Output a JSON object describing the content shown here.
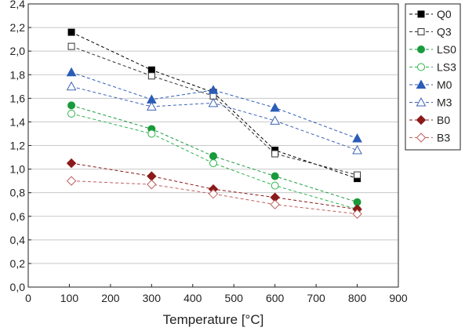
{
  "chart_data": {
    "type": "line",
    "title": "",
    "xlabel": "Temperature [°C]",
    "ylabel": "",
    "xlim": [
      0,
      900
    ],
    "ylim": [
      0.0,
      2.4
    ],
    "xticks": [
      0,
      100,
      200,
      300,
      400,
      500,
      600,
      700,
      800,
      900
    ],
    "xtick_labels": [
      "0",
      "100",
      "200",
      "300",
      "400",
      "500",
      "600",
      "700",
      "800",
      "900"
    ],
    "yticks": [
      0.0,
      0.2,
      0.4,
      0.6,
      0.8,
      1.0,
      1.2,
      1.4,
      1.6,
      1.8,
      2.0,
      2.2,
      2.4
    ],
    "ytick_labels": [
      "0,0",
      "0,2",
      "0,4",
      "0,6",
      "0,8",
      "1,0",
      "1,2",
      "1,4",
      "1,6",
      "1,8",
      "2,0",
      "2,2",
      "2,4"
    ],
    "grid": "horizontal",
    "legend_position": "top-right",
    "x": [
      105,
      300,
      450,
      600,
      800
    ],
    "series": [
      {
        "name": "Q0",
        "values": [
          2.16,
          1.84,
          1.65,
          1.16,
          0.92
        ],
        "color": "#000000",
        "marker": "square",
        "filled": true
      },
      {
        "name": "Q3",
        "values": [
          2.04,
          1.79,
          1.62,
          1.13,
          0.95
        ],
        "color": "#333333",
        "marker": "square",
        "filled": false
      },
      {
        "name": "LS0",
        "values": [
          1.54,
          1.34,
          1.11,
          0.94,
          0.72
        ],
        "color": "#1a9a3c",
        "marker": "circle",
        "filled": true
      },
      {
        "name": "LS3",
        "values": [
          1.47,
          1.3,
          1.05,
          0.86,
          0.66
        ],
        "color": "#2db34a",
        "marker": "circle",
        "filled": false
      },
      {
        "name": "M0",
        "values": [
          1.82,
          1.59,
          1.67,
          1.52,
          1.26
        ],
        "color": "#2b5cb8",
        "marker": "triangle",
        "filled": true
      },
      {
        "name": "M3",
        "values": [
          1.7,
          1.53,
          1.56,
          1.41,
          1.16
        ],
        "color": "#3d63b5",
        "marker": "triangle",
        "filled": false
      },
      {
        "name": "B0",
        "values": [
          1.05,
          0.94,
          0.83,
          0.76,
          0.66
        ],
        "color": "#8b1a1a",
        "marker": "diamond",
        "filled": true
      },
      {
        "name": "B3",
        "values": [
          0.9,
          0.87,
          0.79,
          0.7,
          0.62
        ],
        "color": "#c06060",
        "marker": "diamond",
        "filled": false
      }
    ]
  }
}
